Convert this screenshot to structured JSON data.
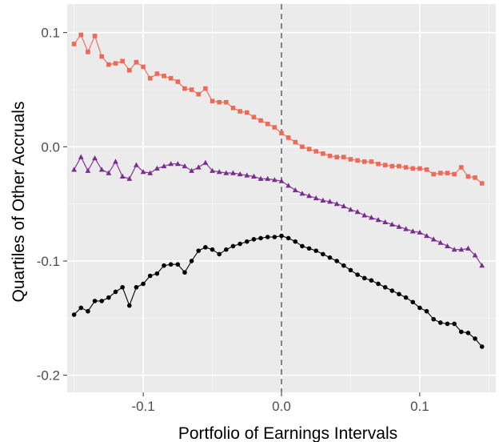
{
  "chart_data": {
    "type": "line",
    "xlabel": "Portfolio of Earnings Intervals",
    "ylabel": "Quartiles of Other Accruals",
    "xlim": [
      -0.155,
      0.155
    ],
    "ylim": [
      -0.215,
      0.125
    ],
    "x_ticks": [
      -0.1,
      0.0,
      0.1
    ],
    "x_tick_labels": [
      "-0.1",
      "0.0",
      "0.1"
    ],
    "y_ticks": [
      0.1,
      0.0,
      -0.1,
      -0.2
    ],
    "y_tick_labels": [
      "0.1",
      "0.0",
      "-0.1",
      "-0.2"
    ],
    "grid": true,
    "reference_line": {
      "x": 0.0,
      "style": "dashed"
    },
    "x": [
      -0.15,
      -0.145,
      -0.14,
      -0.135,
      -0.13,
      -0.125,
      -0.12,
      -0.115,
      -0.11,
      -0.105,
      -0.1,
      -0.095,
      -0.09,
      -0.085,
      -0.08,
      -0.075,
      -0.07,
      -0.065,
      -0.06,
      -0.055,
      -0.05,
      -0.045,
      -0.04,
      -0.035,
      -0.03,
      -0.025,
      -0.02,
      -0.015,
      -0.01,
      -0.005,
      0.0,
      0.005,
      0.01,
      0.015,
      0.02,
      0.025,
      0.03,
      0.035,
      0.04,
      0.045,
      0.05,
      0.055,
      0.06,
      0.065,
      0.07,
      0.075,
      0.08,
      0.085,
      0.09,
      0.095,
      0.1,
      0.105,
      0.11,
      0.115,
      0.12,
      0.125,
      0.13,
      0.135,
      0.14,
      0.145
    ],
    "series": [
      {
        "color": "#ee6a58",
        "marker": "square",
        "values": [
          0.09,
          0.098,
          0.083,
          0.097,
          0.079,
          0.072,
          0.073,
          0.075,
          0.067,
          0.074,
          0.07,
          0.06,
          0.064,
          0.062,
          0.06,
          0.057,
          0.051,
          0.05,
          0.046,
          0.051,
          0.04,
          0.039,
          0.039,
          0.034,
          0.031,
          0.03,
          0.026,
          0.023,
          0.02,
          0.017,
          0.012,
          0.008,
          0.004,
          0.0,
          -0.002,
          -0.004,
          -0.006,
          -0.008,
          -0.009,
          -0.009,
          -0.011,
          -0.012,
          -0.013,
          -0.013,
          -0.015,
          -0.016,
          -0.017,
          -0.017,
          -0.018,
          -0.019,
          -0.019,
          -0.02,
          -0.024,
          -0.023,
          -0.023,
          -0.024,
          -0.018,
          -0.026,
          -0.027,
          -0.032
        ]
      },
      {
        "color": "#7a2d8e",
        "marker": "triangle",
        "values": [
          -0.02,
          -0.009,
          -0.021,
          -0.01,
          -0.02,
          -0.023,
          -0.013,
          -0.026,
          -0.028,
          -0.016,
          -0.022,
          -0.023,
          -0.019,
          -0.017,
          -0.015,
          -0.015,
          -0.017,
          -0.021,
          -0.018,
          -0.014,
          -0.021,
          -0.022,
          -0.023,
          -0.023,
          -0.024,
          -0.025,
          -0.026,
          -0.028,
          -0.028,
          -0.029,
          -0.03,
          -0.034,
          -0.038,
          -0.041,
          -0.043,
          -0.045,
          -0.047,
          -0.048,
          -0.05,
          -0.052,
          -0.055,
          -0.057,
          -0.06,
          -0.062,
          -0.064,
          -0.066,
          -0.068,
          -0.07,
          -0.072,
          -0.074,
          -0.075,
          -0.078,
          -0.081,
          -0.084,
          -0.087,
          -0.09,
          -0.09,
          -0.089,
          -0.095,
          -0.104
        ]
      },
      {
        "color": "#000000",
        "marker": "circle",
        "values": [
          -0.147,
          -0.141,
          -0.144,
          -0.135,
          -0.135,
          -0.132,
          -0.127,
          -0.123,
          -0.139,
          -0.123,
          -0.12,
          -0.113,
          -0.111,
          -0.104,
          -0.103,
          -0.103,
          -0.11,
          -0.1,
          -0.091,
          -0.088,
          -0.09,
          -0.094,
          -0.09,
          -0.087,
          -0.085,
          -0.083,
          -0.081,
          -0.08,
          -0.079,
          -0.079,
          -0.078,
          -0.08,
          -0.083,
          -0.087,
          -0.089,
          -0.091,
          -0.094,
          -0.097,
          -0.1,
          -0.104,
          -0.108,
          -0.112,
          -0.115,
          -0.117,
          -0.12,
          -0.123,
          -0.126,
          -0.129,
          -0.132,
          -0.136,
          -0.141,
          -0.144,
          -0.151,
          -0.154,
          -0.155,
          -0.155,
          -0.162,
          -0.163,
          -0.168,
          -0.175
        ]
      }
    ]
  }
}
